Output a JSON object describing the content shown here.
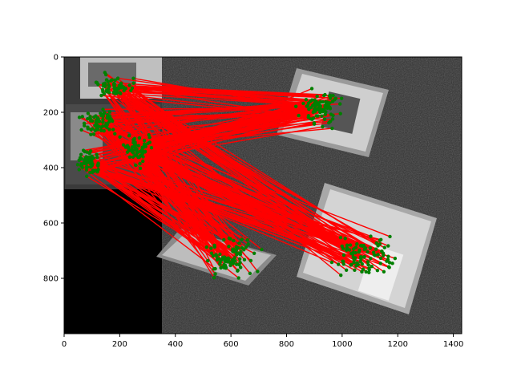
{
  "figure": {
    "background": "#ffffff",
    "match_line_color": "#ff0000",
    "keypoint_color": "#008000"
  },
  "axes": {
    "x_range": [
      0,
      1430
    ],
    "y_range": [
      0,
      1000
    ],
    "y_inverted": true,
    "x_ticks": [
      "0",
      "200",
      "400",
      "600",
      "800",
      "1000",
      "1200",
      "1400"
    ],
    "y_ticks": [
      "0",
      "200",
      "400",
      "600",
      "800"
    ]
  },
  "image": {
    "description_free": true,
    "left_panel_width": 352,
    "books": [
      {
        "name": "book-right-top",
        "color": "#c9c9c9"
      },
      {
        "name": "book-right-bottom",
        "color": "#d0d0d0"
      },
      {
        "name": "book-left-top",
        "color": "#c4c4c4"
      },
      {
        "name": "book-left-bottom",
        "color": "#bdbdbd"
      }
    ]
  },
  "matches": {
    "count": 260,
    "source_clusters": [
      {
        "cx": 180,
        "cy": 110,
        "sx": 60,
        "sy": 40
      },
      {
        "cx": 120,
        "cy": 230,
        "sx": 50,
        "sy": 50
      },
      {
        "cx": 90,
        "cy": 380,
        "sx": 40,
        "sy": 40
      },
      {
        "cx": 260,
        "cy": 330,
        "sx": 50,
        "sy": 60
      }
    ],
    "target_clusters": [
      {
        "cx": 920,
        "cy": 190,
        "sx": 70,
        "sy": 60
      },
      {
        "cx": 1080,
        "cy": 720,
        "sx": 110,
        "sy": 70
      },
      {
        "cx": 600,
        "cy": 720,
        "sx": 80,
        "sy": 60
      }
    ]
  }
}
